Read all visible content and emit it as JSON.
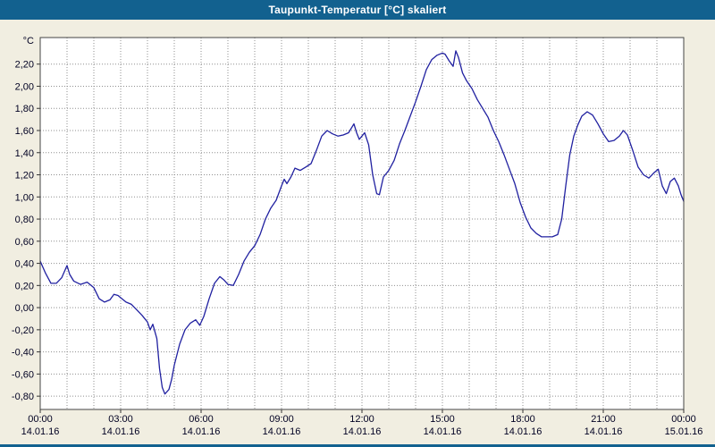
{
  "window": {
    "title": "Taupunkt-Temperatur [°C] skaliert"
  },
  "colors": {
    "titlebar": "#12618f",
    "background": "#f1eee1",
    "plot_background": "#ffffff",
    "grid": "#8f8f8f",
    "axis_text": "#000022",
    "tick": "#333333",
    "plot_border": "#444444",
    "line": "#2020a0"
  },
  "chart_data": {
    "type": "line",
    "title": "Taupunkt-Temperatur [°C] skaliert",
    "unit_label": "°C",
    "xlabel": "",
    "ylabel": "°C",
    "xlim": [
      0,
      24
    ],
    "ylim": [
      -0.92,
      2.44
    ],
    "grid": "dotted",
    "legend": "none",
    "y_ticks": [
      {
        "value": 2.2,
        "label": "2,20"
      },
      {
        "value": 2.0,
        "label": "2,00"
      },
      {
        "value": 1.8,
        "label": "1,80"
      },
      {
        "value": 1.6,
        "label": "1,60"
      },
      {
        "value": 1.4,
        "label": "1,40"
      },
      {
        "value": 1.2,
        "label": "1,20"
      },
      {
        "value": 1.0,
        "label": "1,00"
      },
      {
        "value": 0.8,
        "label": "0,80"
      },
      {
        "value": 0.6,
        "label": "0,60"
      },
      {
        "value": 0.4,
        "label": "0,40"
      },
      {
        "value": 0.2,
        "label": "0,20"
      },
      {
        "value": 0.0,
        "label": "0,00"
      },
      {
        "value": -0.2,
        "label": "-0,20"
      },
      {
        "value": -0.4,
        "label": "-0,40"
      },
      {
        "value": -0.6,
        "label": "-0,60"
      },
      {
        "value": -0.8,
        "label": "-0,80"
      }
    ],
    "x_ticks": [
      {
        "hour": 0,
        "time": "00:00",
        "date": "14.01.16"
      },
      {
        "hour": 3,
        "time": "03:00",
        "date": "14.01.16"
      },
      {
        "hour": 6,
        "time": "06:00",
        "date": "14.01.16"
      },
      {
        "hour": 9,
        "time": "09:00",
        "date": "14.01.16"
      },
      {
        "hour": 12,
        "time": "12:00",
        "date": "14.01.16"
      },
      {
        "hour": 15,
        "time": "15:00",
        "date": "14.01.16"
      },
      {
        "hour": 18,
        "time": "18:00",
        "date": "14.01.16"
      },
      {
        "hour": 21,
        "time": "21:00",
        "date": "14.01.16"
      },
      {
        "hour": 24,
        "time": "00:00",
        "date": "15.01.16"
      }
    ],
    "series": [
      {
        "name": "Taupunkt-Temperatur",
        "color": "#2020a0",
        "points": [
          [
            0.0,
            0.42
          ],
          [
            0.2,
            0.31
          ],
          [
            0.4,
            0.22
          ],
          [
            0.6,
            0.22
          ],
          [
            0.8,
            0.27
          ],
          [
            1.0,
            0.38
          ],
          [
            1.1,
            0.3
          ],
          [
            1.25,
            0.24
          ],
          [
            1.5,
            0.21
          ],
          [
            1.75,
            0.23
          ],
          [
            2.0,
            0.18
          ],
          [
            2.2,
            0.08
          ],
          [
            2.4,
            0.05
          ],
          [
            2.6,
            0.07
          ],
          [
            2.75,
            0.12
          ],
          [
            2.9,
            0.11
          ],
          [
            3.0,
            0.09
          ],
          [
            3.2,
            0.05
          ],
          [
            3.4,
            0.03
          ],
          [
            3.6,
            -0.02
          ],
          [
            3.8,
            -0.07
          ],
          [
            4.0,
            -0.13
          ],
          [
            4.1,
            -0.2
          ],
          [
            4.2,
            -0.15
          ],
          [
            4.35,
            -0.28
          ],
          [
            4.45,
            -0.55
          ],
          [
            4.55,
            -0.72
          ],
          [
            4.65,
            -0.78
          ],
          [
            4.8,
            -0.74
          ],
          [
            4.9,
            -0.65
          ],
          [
            5.0,
            -0.52
          ],
          [
            5.2,
            -0.33
          ],
          [
            5.4,
            -0.2
          ],
          [
            5.6,
            -0.14
          ],
          [
            5.8,
            -0.11
          ],
          [
            5.95,
            -0.16
          ],
          [
            6.1,
            -0.08
          ],
          [
            6.3,
            0.08
          ],
          [
            6.5,
            0.22
          ],
          [
            6.7,
            0.28
          ],
          [
            6.85,
            0.25
          ],
          [
            7.0,
            0.21
          ],
          [
            7.2,
            0.2
          ],
          [
            7.4,
            0.3
          ],
          [
            7.6,
            0.42
          ],
          [
            7.8,
            0.5
          ],
          [
            8.0,
            0.56
          ],
          [
            8.2,
            0.66
          ],
          [
            8.4,
            0.8
          ],
          [
            8.6,
            0.9
          ],
          [
            8.8,
            0.97
          ],
          [
            9.0,
            1.1
          ],
          [
            9.1,
            1.16
          ],
          [
            9.2,
            1.12
          ],
          [
            9.35,
            1.18
          ],
          [
            9.5,
            1.26
          ],
          [
            9.7,
            1.24
          ],
          [
            9.9,
            1.27
          ],
          [
            10.1,
            1.3
          ],
          [
            10.3,
            1.42
          ],
          [
            10.5,
            1.55
          ],
          [
            10.7,
            1.6
          ],
          [
            10.9,
            1.57
          ],
          [
            11.1,
            1.55
          ],
          [
            11.3,
            1.56
          ],
          [
            11.5,
            1.58
          ],
          [
            11.7,
            1.66
          ],
          [
            11.8,
            1.58
          ],
          [
            11.9,
            1.52
          ],
          [
            12.0,
            1.55
          ],
          [
            12.1,
            1.58
          ],
          [
            12.25,
            1.47
          ],
          [
            12.4,
            1.2
          ],
          [
            12.55,
            1.03
          ],
          [
            12.65,
            1.02
          ],
          [
            12.8,
            1.18
          ],
          [
            13.0,
            1.24
          ],
          [
            13.2,
            1.33
          ],
          [
            13.4,
            1.48
          ],
          [
            13.6,
            1.6
          ],
          [
            13.8,
            1.73
          ],
          [
            14.0,
            1.86
          ],
          [
            14.2,
            2.0
          ],
          [
            14.4,
            2.15
          ],
          [
            14.6,
            2.24
          ],
          [
            14.8,
            2.28
          ],
          [
            15.0,
            2.3
          ],
          [
            15.1,
            2.29
          ],
          [
            15.25,
            2.23
          ],
          [
            15.4,
            2.18
          ],
          [
            15.5,
            2.32
          ],
          [
            15.6,
            2.26
          ],
          [
            15.75,
            2.12
          ],
          [
            15.9,
            2.05
          ],
          [
            16.1,
            1.98
          ],
          [
            16.3,
            1.88
          ],
          [
            16.5,
            1.8
          ],
          [
            16.7,
            1.72
          ],
          [
            16.9,
            1.6
          ],
          [
            17.1,
            1.5
          ],
          [
            17.3,
            1.38
          ],
          [
            17.5,
            1.25
          ],
          [
            17.7,
            1.12
          ],
          [
            17.9,
            0.95
          ],
          [
            18.1,
            0.82
          ],
          [
            18.3,
            0.72
          ],
          [
            18.5,
            0.67
          ],
          [
            18.7,
            0.64
          ],
          [
            18.9,
            0.64
          ],
          [
            19.1,
            0.64
          ],
          [
            19.3,
            0.66
          ],
          [
            19.45,
            0.8
          ],
          [
            19.6,
            1.1
          ],
          [
            19.75,
            1.38
          ],
          [
            19.9,
            1.55
          ],
          [
            20.05,
            1.65
          ],
          [
            20.2,
            1.73
          ],
          [
            20.4,
            1.77
          ],
          [
            20.6,
            1.74
          ],
          [
            20.8,
            1.66
          ],
          [
            21.0,
            1.57
          ],
          [
            21.2,
            1.5
          ],
          [
            21.4,
            1.51
          ],
          [
            21.6,
            1.55
          ],
          [
            21.75,
            1.6
          ],
          [
            21.9,
            1.56
          ],
          [
            22.1,
            1.42
          ],
          [
            22.3,
            1.27
          ],
          [
            22.5,
            1.2
          ],
          [
            22.7,
            1.17
          ],
          [
            22.9,
            1.22
          ],
          [
            23.05,
            1.25
          ],
          [
            23.2,
            1.1
          ],
          [
            23.35,
            1.03
          ],
          [
            23.5,
            1.14
          ],
          [
            23.65,
            1.17
          ],
          [
            23.8,
            1.1
          ],
          [
            23.9,
            1.02
          ],
          [
            24.0,
            0.96
          ]
        ]
      }
    ]
  }
}
